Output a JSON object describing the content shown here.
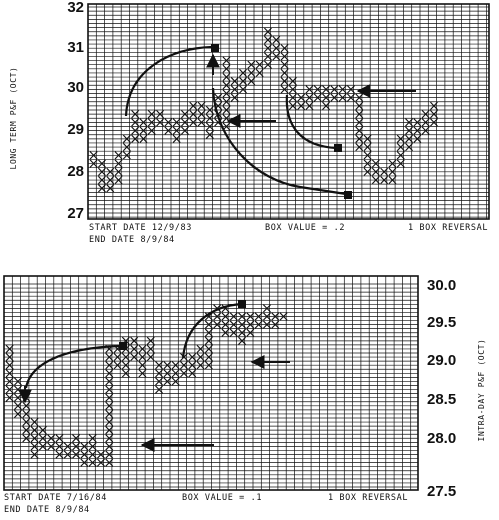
{
  "chart_data": [
    {
      "type": "point-and-figure",
      "ylabel": "LONG TERM P&F (OCT)",
      "ylim": [
        27,
        32
      ],
      "yticks": [
        "32",
        "31",
        "30",
        "29",
        "28",
        "27"
      ],
      "box_value": 0.2,
      "reversal": 1,
      "footer": {
        "start": "START DATE 12/9/83",
        "end": "END DATE 8/9/84",
        "box_value": "BOX VALUE = .2",
        "reversal": "1 BOX REVERSAL"
      },
      "columns": [
        {
          "low": 28.2,
          "high": 28.4
        },
        {
          "low": 27.6,
          "high": 28.2
        },
        {
          "low": 27.6,
          "high": 28.0
        },
        {
          "low": 27.8,
          "high": 28.4
        },
        {
          "low": 28.4,
          "high": 28.8
        },
        {
          "low": 28.8,
          "high": 29.4
        },
        {
          "low": 28.8,
          "high": 29.2
        },
        {
          "low": 29.0,
          "high": 29.4
        },
        {
          "low": 29.2,
          "high": 29.4
        },
        {
          "low": 29.0,
          "high": 29.2
        },
        {
          "low": 28.8,
          "high": 29.2
        },
        {
          "low": 29.0,
          "high": 29.4
        },
        {
          "low": 29.2,
          "high": 29.6
        },
        {
          "low": 29.2,
          "high": 29.6
        },
        {
          "low": 28.9,
          "high": 29.4
        },
        {
          "low": 29.2,
          "high": 29.8
        },
        {
          "low": 29.1,
          "high": 30.6
        },
        {
          "low": 29.8,
          "high": 30.2
        },
        {
          "low": 30.0,
          "high": 30.4
        },
        {
          "low": 30.2,
          "high": 30.6
        },
        {
          "low": 30.4,
          "high": 30.6
        },
        {
          "low": 30.6,
          "high": 31.4
        },
        {
          "low": 30.8,
          "high": 31.2
        },
        {
          "low": 30.0,
          "high": 31.0
        },
        {
          "low": 29.6,
          "high": 30.2
        },
        {
          "low": 29.6,
          "high": 29.8
        },
        {
          "low": 29.6,
          "high": 30.0
        },
        {
          "low": 29.8,
          "high": 30.0
        },
        {
          "low": 29.6,
          "high": 30.0
        },
        {
          "low": 29.8,
          "high": 30.0
        },
        {
          "low": 29.8,
          "high": 30.0
        },
        {
          "low": 29.8,
          "high": 30.0
        },
        {
          "low": 28.6,
          "high": 29.8
        },
        {
          "low": 28.0,
          "high": 28.8
        },
        {
          "low": 27.8,
          "high": 28.2
        },
        {
          "low": 27.8,
          "high": 28.0
        },
        {
          "low": 27.8,
          "high": 28.2
        },
        {
          "low": 28.2,
          "high": 28.8
        },
        {
          "low": 28.6,
          "high": 29.2
        },
        {
          "low": 28.8,
          "high": 29.2
        },
        {
          "low": 29.0,
          "high": 29.4
        },
        {
          "low": 29.2,
          "high": 29.6
        }
      ]
    },
    {
      "type": "point-and-figure",
      "ylabel": "INTRA-DAY P&F (OCT)",
      "ylim": [
        27.5,
        30.0
      ],
      "yticks": [
        "30.0",
        "29.5",
        "29.0",
        "28.5",
        "28.0",
        "27.5"
      ],
      "box_value": 0.1,
      "reversal": 1,
      "footer": {
        "start": "START DATE 7/16/84",
        "end": "END DATE 8/9/84",
        "box_value": "BOX VALUE = .1",
        "reversal": "1 BOX REVERSAL"
      },
      "columns": [
        {
          "low": 28.6,
          "high": 29.2
        },
        {
          "low": 28.4,
          "high": 28.8
        },
        {
          "low": 28.1,
          "high": 28.6
        },
        {
          "low": 27.9,
          "high": 28.3
        },
        {
          "low": 28.0,
          "high": 28.2
        },
        {
          "low": 28.0,
          "high": 28.1
        },
        {
          "low": 27.9,
          "high": 28.1
        },
        {
          "low": 27.9,
          "high": 28.0
        },
        {
          "low": 27.9,
          "high": 28.1
        },
        {
          "low": 27.8,
          "high": 28.0
        },
        {
          "low": 27.8,
          "high": 28.1
        },
        {
          "low": 27.8,
          "high": 27.9
        },
        {
          "low": 27.8,
          "high": 29.2
        },
        {
          "low": 29.0,
          "high": 29.2
        },
        {
          "low": 28.9,
          "high": 29.3
        },
        {
          "low": 29.1,
          "high": 29.3
        },
        {
          "low": 28.9,
          "high": 29.2
        },
        {
          "low": 29.1,
          "high": 29.3
        },
        {
          "low": 28.7,
          "high": 29.0
        },
        {
          "low": 28.8,
          "high": 29.0
        },
        {
          "low": 28.8,
          "high": 29.0
        },
        {
          "low": 28.9,
          "high": 29.1
        },
        {
          "low": 28.9,
          "high": 29.1
        },
        {
          "low": 29.0,
          "high": 29.2
        },
        {
          "low": 29.0,
          "high": 29.6
        },
        {
          "low": 29.5,
          "high": 29.7
        },
        {
          "low": 29.4,
          "high": 29.7
        },
        {
          "low": 29.4,
          "high": 29.6
        },
        {
          "low": 29.3,
          "high": 29.6
        },
        {
          "low": 29.4,
          "high": 29.6
        },
        {
          "low": 29.5,
          "high": 29.6
        },
        {
          "low": 29.5,
          "high": 29.7
        },
        {
          "low": 29.5,
          "high": 29.6
        },
        {
          "low": 29.6,
          "high": 29.6
        }
      ]
    }
  ]
}
